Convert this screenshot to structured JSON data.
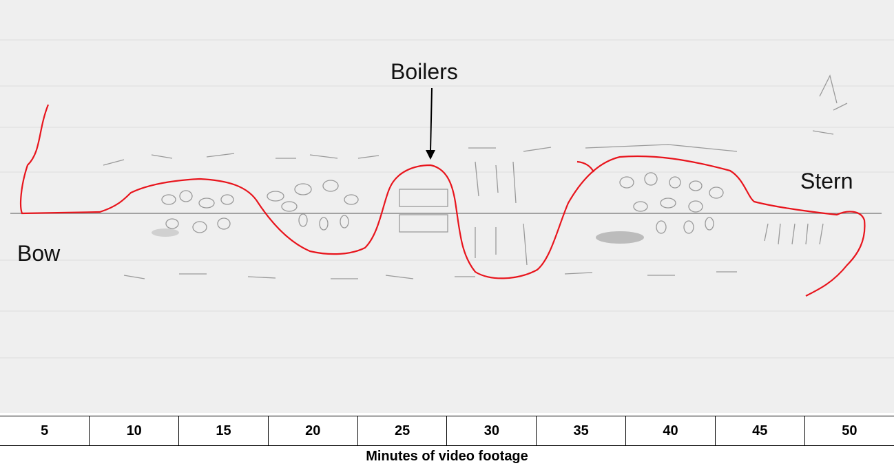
{
  "labels": {
    "boilers": "Boilers",
    "stern": "Stern",
    "bow": "Bow"
  },
  "table": {
    "cells": [
      5,
      10,
      15,
      20,
      25,
      30,
      35,
      40,
      45,
      50
    ],
    "caption": "Minutes of video footage"
  }
}
